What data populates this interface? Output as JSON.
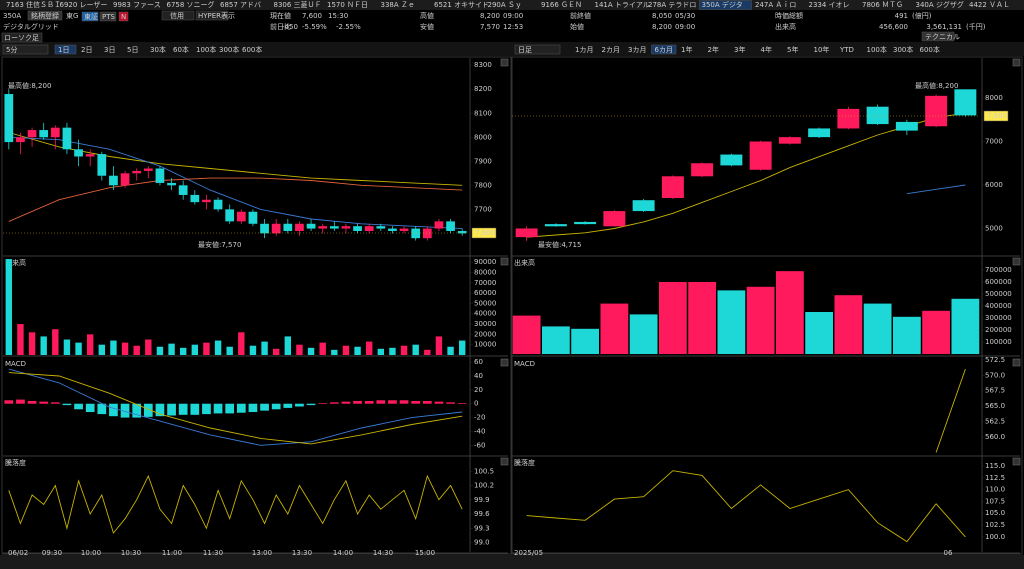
{
  "tabs": [
    "7163 住信ＳＢＩ",
    "6920 レーザー",
    "9983 ファース",
    "6758 ソニーグ",
    "6857 アドバ",
    "8306 三菱ＵＦ",
    "1570 ＮＦ日",
    "338A Ｚｅ",
    "6521 オキサイド",
    "290A Ｓｙ",
    "9166 ＧＥＮ",
    "141A トライアル",
    "278A テラドロ",
    "350A デジタ",
    "247A Ａｉロ",
    "2334 イオレ",
    "7806 ＭＴＧ",
    "340A ジグザグ",
    "4422 ＶＡＬ"
  ],
  "active_tab": 13,
  "header": {
    "code": "350A",
    "register": "銘柄登録",
    "market": "東G",
    "buttons": [
      "東証",
      "PTS",
      "N"
    ],
    "credit": "信用",
    "hyper": "HYPER表示",
    "name": "デジタルグリッド",
    "chart_kind": "ローソク足",
    "technical": "テクニカル",
    "price": {
      "label": "現在値",
      "value": "7,600",
      "time": "15:30"
    },
    "change": {
      "label": "前日比",
      "value": "-450",
      "pct": "-5.59%",
      "index_pct": "-2.55%"
    },
    "high": {
      "label": "高値",
      "value": "8,200",
      "time": "09:00"
    },
    "low": {
      "label": "安値",
      "value": "7,570",
      "time": "12:53"
    },
    "prev_close": {
      "label": "前終値",
      "value": "8,050",
      "time": "05/30"
    },
    "open": {
      "label": "始値",
      "value": "8,200",
      "time": "09:00"
    },
    "market_cap": {
      "label": "時価総額",
      "value": "491",
      "unit": "(億円)"
    },
    "volume": {
      "label": "出来高",
      "value": "456,600",
      "amount": "3,561,131",
      "unit": "(千円)"
    }
  },
  "up_color": "#ff1a5e",
  "down_color": "#1ed8d8",
  "charts": [
    {
      "interval": "5分",
      "ranges": [
        "1日",
        "2日",
        "3日",
        "5日",
        "30本",
        "60本",
        "100本",
        "300本",
        "600本"
      ],
      "active_range": 0,
      "high_note": "最高値:8,200",
      "low_note": "最安値:7,570",
      "ylim": [
        7510,
        8330
      ],
      "yticks": [
        8300,
        8200,
        8100,
        8000,
        7900,
        7800,
        7700
      ],
      "x_labels": [
        "06/02",
        "09:30",
        "10:00",
        "10:30",
        "11:00",
        "11:30",
        "13:00",
        "13:30",
        "14:00",
        "14:30",
        "15:00"
      ],
      "candles": [
        [
          8180,
          8200,
          7950,
          7980
        ],
        [
          7980,
          8020,
          7930,
          8000
        ],
        [
          8000,
          8040,
          7960,
          8030
        ],
        [
          8030,
          8060,
          7990,
          8000
        ],
        [
          8000,
          8050,
          7950,
          8040
        ],
        [
          8040,
          8060,
          7930,
          7950
        ],
        [
          7950,
          7990,
          7880,
          7920
        ],
        [
          7920,
          7950,
          7880,
          7930
        ],
        [
          7930,
          7940,
          7820,
          7840
        ],
        [
          7840,
          7880,
          7780,
          7800
        ],
        [
          7800,
          7860,
          7790,
          7850
        ],
        [
          7850,
          7870,
          7820,
          7860
        ],
        [
          7860,
          7880,
          7830,
          7870
        ],
        [
          7870,
          7880,
          7800,
          7810
        ],
        [
          7810,
          7830,
          7780,
          7800
        ],
        [
          7800,
          7820,
          7740,
          7760
        ],
        [
          7760,
          7780,
          7720,
          7730
        ],
        [
          7730,
          7760,
          7700,
          7740
        ],
        [
          7740,
          7750,
          7690,
          7700
        ],
        [
          7700,
          7720,
          7640,
          7650
        ],
        [
          7650,
          7700,
          7640,
          7690
        ],
        [
          7690,
          7700,
          7630,
          7640
        ],
        [
          7640,
          7660,
          7580,
          7600
        ],
        [
          7600,
          7660,
          7590,
          7640
        ],
        [
          7640,
          7660,
          7600,
          7610
        ],
        [
          7610,
          7650,
          7590,
          7640
        ],
        [
          7640,
          7660,
          7610,
          7620
        ],
        [
          7620,
          7640,
          7600,
          7630
        ],
        [
          7630,
          7650,
          7610,
          7620
        ],
        [
          7620,
          7640,
          7600,
          7630
        ],
        [
          7630,
          7640,
          7600,
          7610
        ],
        [
          7610,
          7640,
          7600,
          7630
        ],
        [
          7630,
          7640,
          7610,
          7620
        ],
        [
          7620,
          7630,
          7600,
          7610
        ],
        [
          7610,
          7630,
          7600,
          7620
        ],
        [
          7620,
          7630,
          7570,
          7580
        ],
        [
          7580,
          7630,
          7570,
          7620
        ],
        [
          7620,
          7660,
          7610,
          7650
        ],
        [
          7650,
          7660,
          7600,
          7610
        ],
        [
          7610,
          7620,
          7590,
          7600
        ]
      ],
      "ma": [
        {
          "color": "#c8b400",
          "values": [
            8020,
            7960,
            7920,
            7890,
            7870,
            7850,
            7830,
            7820,
            7810,
            7800
          ]
        },
        {
          "color": "#3a7bd5",
          "values": [
            8000,
            7990,
            7950,
            7880,
            7780,
            7700,
            7660,
            7640,
            7630,
            7620
          ]
        },
        {
          "color": "#e0603a",
          "values": [
            7650,
            7740,
            7790,
            7820,
            7830,
            7830,
            7820,
            7800,
            7790,
            7780
          ]
        }
      ],
      "volume": {
        "title": "出来高",
        "ylim": [
          0,
          95000
        ],
        "yticks": [
          90000,
          80000,
          70000,
          60000,
          50000,
          40000,
          30000,
          20000,
          10000
        ],
        "values": [
          93000,
          30000,
          22000,
          18000,
          25000,
          15000,
          12000,
          20000,
          10000,
          14000,
          12000,
          9000,
          15000,
          8000,
          11000,
          7000,
          10000,
          12000,
          14000,
          8000,
          22000,
          9000,
          13000,
          6000,
          18000,
          10000,
          7000,
          12000,
          5000,
          9000,
          8000,
          13000,
          6000,
          7000,
          9000,
          10000,
          5000,
          18000,
          8000,
          14000
        ]
      },
      "macd": {
        "title": "MACD",
        "ylim": [
          -74,
          66
        ],
        "yticks": [
          60,
          40,
          20,
          0,
          -20,
          -40,
          -60
        ],
        "histogram": [
          5,
          6,
          4,
          3,
          2,
          -2,
          -8,
          -12,
          -15,
          -18,
          -20,
          -20,
          -19,
          -18,
          -17,
          -16,
          -16,
          -15,
          -14,
          -14,
          -13,
          -12,
          -10,
          -8,
          -6,
          -4,
          -2,
          1,
          2,
          3,
          4,
          4,
          5,
          5,
          5,
          4,
          4,
          3,
          2,
          1
        ],
        "lines": [
          {
            "color": "#3a7bd5",
            "values": [
              50,
              30,
              -5,
              -25,
              -45,
              -60,
              -55,
              -35,
              -20,
              -12
            ]
          },
          {
            "color": "#c8b400",
            "values": [
              45,
              40,
              15,
              -15,
              -35,
              -50,
              -58,
              -45,
              -30,
              -18
            ]
          }
        ]
      },
      "ratio": {
        "title": "騰落度",
        "ylim": [
          98.8,
          100.8
        ],
        "yticks": [
          100.5,
          100.2,
          99.9,
          99.6,
          99.3,
          {
            "value": 99.0,
            "label": "99.0"
          }
        ],
        "color": "#c8b400",
        "values": [
          100.1,
          99.4,
          100.0,
          99.8,
          100.2,
          99.3,
          100.3,
          99.6,
          100.0,
          99.2,
          99.5,
          99.9,
          100.4,
          99.7,
          99.4,
          100.2,
          99.8,
          99.3,
          100.1,
          99.5,
          100.3,
          99.9,
          99.4,
          100.0,
          99.6,
          100.2,
          99.8,
          99.4,
          99.9,
          100.3,
          99.6,
          100.0,
          99.7,
          99.9,
          100.1,
          99.5,
          100.4,
          99.9,
          100.2,
          99.7
        ]
      }
    },
    {
      "interval": "日足",
      "ranges": [
        "1カ月",
        "2カ月",
        "3カ月",
        "6カ月",
        "1年",
        "2年",
        "3年",
        "4年",
        "5年",
        "10年",
        "YTD",
        "100本",
        "300本",
        "600本"
      ],
      "active_range": 3,
      "high_note": "最高値:8,200",
      "low_note": "最安値:4,715",
      "ylim": [
        4390,
        8920
      ],
      "yticks": [
        8000,
        7000,
        6000,
        5000
      ],
      "x_labels": [
        "2025/05",
        "06"
      ],
      "candles": [
        [
          4800,
          5050,
          4715,
          5000
        ],
        [
          5100,
          5120,
          5040,
          5050
        ],
        [
          5150,
          5170,
          5090,
          5100
        ],
        [
          5050,
          5420,
          5040,
          5400
        ],
        [
          5650,
          5680,
          5380,
          5400
        ],
        [
          5700,
          6220,
          5680,
          6200
        ],
        [
          6200,
          6520,
          6180,
          6500
        ],
        [
          6700,
          6720,
          6430,
          6450
        ],
        [
          6350,
          7020,
          6330,
          7000
        ],
        [
          6950,
          7120,
          6930,
          7100
        ],
        [
          7300,
          7320,
          7080,
          7100
        ],
        [
          7300,
          7800,
          7280,
          7750
        ],
        [
          7800,
          7850,
          7380,
          7400
        ],
        [
          7450,
          7500,
          7150,
          7250
        ],
        [
          7350,
          8080,
          7330,
          8050
        ],
        [
          8200,
          8200,
          7570,
          7600
        ]
      ],
      "ma": [
        {
          "color": "#c8b400",
          "values": [
            4800,
            4850,
            4900,
            5000,
            5150,
            5350,
            5600,
            5850,
            6100,
            6400,
            6650,
            6900,
            7150,
            7350,
            7550,
            7650
          ]
        },
        {
          "color": "#3a7bd5",
          "values": [
            null,
            null,
            null,
            null,
            null,
            null,
            null,
            null,
            null,
            null,
            null,
            null,
            null,
            5800,
            5900,
            6000
          ]
        }
      ],
      "volume": {
        "title": "出来高",
        "ylim": [
          -8000,
          808000
        ],
        "yticks": [
          700000,
          600000,
          500000,
          400000,
          300000,
          200000,
          100000
        ],
        "values": [
          320000,
          230000,
          210000,
          420000,
          330000,
          600000,
          600000,
          530000,
          560000,
          690000,
          350000,
          490000,
          420000,
          310000,
          360000,
          460000
        ]
      },
      "macd": {
        "title": "MACD",
        "ylim": [
          557.1,
          572.8
        ],
        "yticks": [
          572.5,
          {
            "value": 570.0,
            "label": "570.0"
          },
          567.5,
          {
            "value": 565.0,
            "label": "565.0"
          },
          562.5,
          {
            "value": 560.0,
            "label": "560.0"
          }
        ],
        "histogram": [],
        "lines": [
          {
            "color": "#c8b400",
            "values": [
              null,
              null,
              null,
              null,
              null,
              null,
              null,
              null,
              null,
              null,
              null,
              null,
              null,
              null,
              557.5,
              571
            ]
          }
        ]
      },
      "ratio": {
        "title": "騰落度",
        "ylim": [
          96.8,
          116.9
        ],
        "yticks": [
          {
            "value": 115.0,
            "label": "115.0"
          },
          112.5,
          {
            "value": 110.0,
            "label": "110.0"
          },
          107.5,
          {
            "value": 105.0,
            "label": "105.0"
          },
          102.5,
          {
            "value": 100.0,
            "label": "100.0"
          }
        ],
        "color": "#c8b400",
        "values": [
          104.5,
          104,
          103.5,
          108,
          108.5,
          114,
          113,
          106,
          111,
          106,
          108,
          110,
          103,
          99,
          107,
          100
        ]
      }
    }
  ]
}
